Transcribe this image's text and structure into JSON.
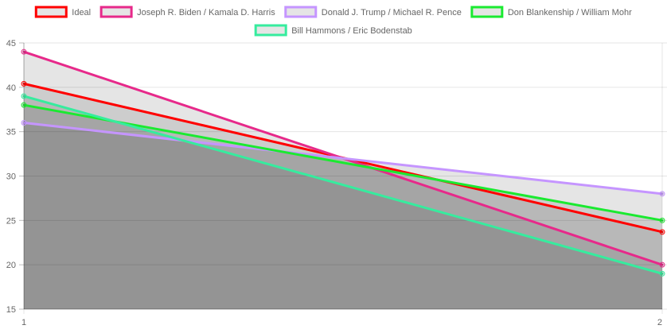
{
  "chart_data": {
    "type": "line",
    "x": [
      "1",
      "2"
    ],
    "ylim": [
      15,
      45
    ],
    "yticks": [
      15,
      20,
      25,
      30,
      35,
      40,
      45
    ],
    "grid": true,
    "legend_position": "top",
    "series": [
      {
        "name": "Ideal",
        "values": [
          40.4,
          23.7
        ],
        "color": "#ff0000"
      },
      {
        "name": "Joseph R. Biden / Kamala D. Harris",
        "values": [
          44,
          20
        ],
        "color": "#e7298a"
      },
      {
        "name": "Donald J. Trump / Michael R. Pence",
        "values": [
          36,
          28
        ],
        "color": "#c595ff"
      },
      {
        "name": "Don Blankenship / William Mohr",
        "values": [
          38,
          25
        ],
        "color": "#1aea30"
      },
      {
        "name": "Bill Hammons / Eric Bodenstab",
        "values": [
          39,
          19
        ],
        "color": "#36ec9e"
      }
    ]
  }
}
